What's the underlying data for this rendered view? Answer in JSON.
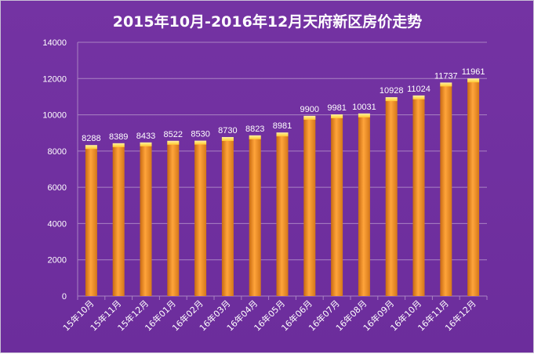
{
  "chart_data": {
    "type": "bar",
    "title": "2015年10月-2016年12月天府新区房价走势",
    "xlabel": "",
    "ylabel": "",
    "categories": [
      "15年10月",
      "15年11月",
      "15年12月",
      "16年01月",
      "16年02月",
      "16年03月",
      "16年04月",
      "16年05月",
      "16年06月",
      "16年07月",
      "16年08月",
      "16年09月",
      "16年10月",
      "16年11月",
      "16年12月"
    ],
    "values": [
      8288,
      8389,
      8433,
      8522,
      8530,
      8730,
      8823,
      8981,
      9900,
      9981,
      10031,
      10928,
      11024,
      11737,
      11961
    ],
    "ylim": [
      0,
      14000
    ],
    "yticks": [
      0,
      2000,
      4000,
      6000,
      8000,
      10000,
      12000,
      14000
    ],
    "grid": true,
    "legend": "none",
    "colors": {
      "background": "#7030a0",
      "bar": "#f39426",
      "bar_top": "#ffd23c",
      "grid": "#a982c3",
      "text": "#ffffff"
    }
  }
}
